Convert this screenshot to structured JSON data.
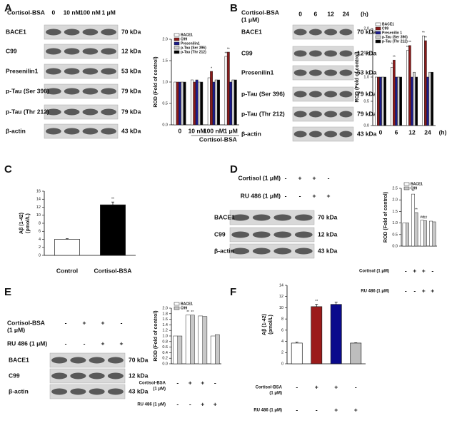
{
  "panel_labels": [
    "A",
    "B",
    "C",
    "D",
    "E",
    "F"
  ],
  "blots": [
    {
      "header": [
        "Cortisol-BSA"
      ],
      "lanes": [
        "0",
        "10 nM",
        "100 nM",
        "1 μM"
      ],
      "rows": [
        {
          "label": "BACE1",
          "kda": "70 kDa"
        },
        {
          "label": "C99",
          "kda": "12 kDa"
        },
        {
          "label": "Presenilin1",
          "kda": "53 kDa"
        },
        {
          "label": "p-Tau (Ser 396)",
          "kda": "79 kDa"
        },
        {
          "label": "p-Tau (Thr 212)",
          "kda": "79 kDa"
        },
        {
          "label": "β-actin",
          "kda": "43 kDa"
        }
      ]
    },
    {
      "header": [
        "Cortisol-BSA",
        "(1 μM)"
      ],
      "lanes": [
        "0",
        "6",
        "12",
        "24"
      ],
      "unit": "(h)",
      "rows": [
        {
          "label": "BACE1",
          "kda": "70 kDa"
        },
        {
          "label": "C99",
          "kda": "12 kDa"
        },
        {
          "label": "Presenilin1",
          "kda": "53 kDa"
        },
        {
          "label": "p-Tau (Ser 396)",
          "kda": "79 kDa"
        },
        {
          "label": "p-Tau (Thr 212)",
          "kda": "79 kDa"
        },
        {
          "label": "β-actin",
          "kda": "43 kDa"
        }
      ]
    },
    {
      "conditions": [
        {
          "name": [
            "Cortisol (1 μM)"
          ],
          "signs": [
            "-",
            "+",
            "+",
            "-"
          ]
        },
        {
          "name": [
            "RU 486 (1 μM)"
          ],
          "signs": [
            "-",
            "-",
            "+",
            "+"
          ]
        }
      ],
      "rows": [
        {
          "label": "BACE1",
          "kda": "70 kDa"
        },
        {
          "label": "C99",
          "kda": "12 kDa"
        },
        {
          "label": "β-actin",
          "kda": "43 kDa"
        }
      ]
    },
    {
      "conditions": [
        {
          "name": [
            "Cortisol-BSA",
            "(1 μM)"
          ],
          "signs": [
            "-",
            "+",
            "+",
            "-"
          ]
        },
        {
          "name": [
            "RU 486 (1 μM)"
          ],
          "signs": [
            "-",
            "-",
            "+",
            "+"
          ]
        }
      ],
      "rows": [
        {
          "label": "BACE1",
          "kda": "70 kDa"
        },
        {
          "label": "C99",
          "kda": "12 kDa"
        },
        {
          "label": "β-actin",
          "kda": "43 kDa"
        }
      ]
    }
  ],
  "chart_data": [
    {
      "type": "bar",
      "ylabel": "ROD (Fold of control)",
      "xlabel": "Cortisol-BSA",
      "categories": [
        "0",
        "10 nM",
        "100 nM",
        "1 μM"
      ],
      "series": [
        {
          "name": "BACE1",
          "color": "#ffffff",
          "values": [
            1.0,
            1.05,
            1.1,
            1.6
          ]
        },
        {
          "name": "C99",
          "color": "#8b1a1a",
          "values": [
            1.0,
            1.0,
            1.25,
            1.7
          ]
        },
        {
          "name": "Presenilin1",
          "color": "#1a1a8c",
          "values": [
            1.0,
            1.05,
            1.0,
            1.0
          ]
        },
        {
          "name": "p-Tau (Ser 396)",
          "color": "#d0d0d0",
          "values": [
            1.0,
            1.0,
            1.05,
            1.05
          ]
        },
        {
          "name": "p-Tau (Thr 212)",
          "color": "#000000",
          "values": [
            1.0,
            1.0,
            1.05,
            1.05
          ]
        }
      ],
      "ylim": [
        0,
        2
      ],
      "yticks": [
        {
          "value": 0,
          "label": "0.0"
        },
        {
          "value": 0.5,
          "label": "0.5"
        },
        {
          "value": 1,
          "label": "1.0"
        },
        {
          "value": 1.5,
          "label": "1.5"
        },
        {
          "value": 2,
          "label": "2.0"
        }
      ],
      "legend": "upper left",
      "markers": [
        {
          "series": 1,
          "category": 2,
          "label": "*"
        },
        {
          "series": 0,
          "category": 3,
          "label": "**"
        },
        {
          "series": 1,
          "category": 3,
          "label": "**"
        }
      ]
    },
    {
      "type": "bar",
      "ylabel": "ROD (Fold of control)",
      "categories": [
        "0",
        "6",
        "12",
        "24"
      ],
      "unit": "(h)",
      "series": [
        {
          "name": "BACE1",
          "color": "#ffffff",
          "values": [
            1.0,
            1.2,
            1.55,
            1.85
          ]
        },
        {
          "name": "C99",
          "color": "#8b1a1a",
          "values": [
            1.0,
            1.35,
            1.65,
            1.75
          ]
        },
        {
          "name": "Presenilin 1",
          "color": "#1a1a8c",
          "values": [
            1.0,
            1.0,
            1.0,
            1.0
          ]
        },
        {
          "name": "p-Tau (Ser 396)",
          "color": "#d0d0d0",
          "values": [
            1.0,
            1.0,
            1.1,
            1.1
          ]
        },
        {
          "name": "p-Tau (Thr 212)",
          "color": "#000000",
          "values": [
            1.0,
            1.0,
            1.0,
            1.1
          ]
        }
      ],
      "ylim": [
        0,
        2
      ],
      "yticks": [
        {
          "value": 0,
          "label": "0.0"
        },
        {
          "value": 0.5,
          "label": "0.5"
        },
        {
          "value": 1,
          "label": "1.0"
        },
        {
          "value": 1.5,
          "label": "1.5"
        },
        {
          "value": 2,
          "label": "2.0"
        }
      ],
      "legend": "upper left",
      "markers": [
        {
          "series": 0,
          "category": 1,
          "label": "*"
        },
        {
          "series": 1,
          "category": 1,
          "label": "**"
        },
        {
          "series": 0,
          "category": 2,
          "label": "**"
        },
        {
          "series": 1,
          "category": 2,
          "label": "**"
        },
        {
          "series": 0,
          "category": 3,
          "label": "**"
        },
        {
          "series": 1,
          "category": 3,
          "label": "**"
        }
      ]
    },
    {
      "type": "bar",
      "ylabel": [
        "Aβ (1-42)",
        "(pmol/L)"
      ],
      "categories": [
        "Control",
        "Cortisol-BSA"
      ],
      "values": [
        4.0,
        12.6
      ],
      "errors": [
        0.15,
        0.7
      ],
      "colors": [
        "#ffffff",
        "#000000"
      ],
      "ylim": [
        0,
        16
      ],
      "yticks": [
        0,
        2,
        4,
        6,
        8,
        10,
        12,
        14,
        16
      ],
      "markers": [
        {
          "category": 1,
          "label": "**"
        }
      ]
    },
    {
      "type": "bar",
      "ylabel": "ROD (Fold of control)",
      "conditions": [
        {
          "name": [
            "Cortisol (1 μM)"
          ],
          "signs": [
            "-",
            "+",
            "+",
            "-"
          ]
        },
        {
          "name": [
            "RU 486 (1 μM)"
          ],
          "signs": [
            "-",
            "-",
            "+",
            "+"
          ]
        }
      ],
      "series": [
        {
          "name": "BACE1",
          "color": "#ffffff",
          "values": [
            1.0,
            2.25,
            1.12,
            1.08
          ]
        },
        {
          "name": "C99",
          "color": "#c8c8c8",
          "values": [
            1.0,
            1.45,
            1.1,
            1.05
          ]
        }
      ],
      "ylim": [
        0,
        2.5
      ],
      "yticks": [
        {
          "value": 0,
          "label": "0.0"
        },
        {
          "value": 0.5,
          "label": "0.5"
        },
        {
          "value": 1,
          "label": "1.0"
        },
        {
          "value": 1.5,
          "label": "1.5"
        },
        {
          "value": 2,
          "label": "2.0"
        },
        {
          "value": 2.5,
          "label": "2.5"
        }
      ],
      "legend": "upper left",
      "markers": [
        {
          "series": 0,
          "category": 1,
          "label": "**"
        },
        {
          "series": 1,
          "category": 1,
          "label": "**"
        },
        {
          "series": 0,
          "category": 2,
          "label": "##"
        },
        {
          "series": 1,
          "category": 2,
          "label": "##"
        }
      ]
    },
    {
      "type": "bar",
      "ylabel": "ROD (Fold of control)",
      "conditions": [
        {
          "name": [
            "Cortisol-BSA",
            "(1 μM)"
          ],
          "signs": [
            "-",
            "+",
            "+",
            "-"
          ]
        },
        {
          "name": [
            "RU 486 (1 μM)"
          ],
          "signs": [
            "-",
            "-",
            "+",
            "+"
          ]
        }
      ],
      "series": [
        {
          "name": "BACE1",
          "color": "#ffffff",
          "values": [
            1.0,
            1.75,
            1.72,
            1.0
          ]
        },
        {
          "name": "C99",
          "color": "#c8c8c8",
          "values": [
            1.0,
            1.75,
            1.7,
            1.05
          ]
        }
      ],
      "ylim": [
        0,
        2
      ],
      "yticks": [
        {
          "value": 0,
          "label": "0.0"
        },
        {
          "value": 0.2,
          "label": "0.2"
        },
        {
          "value": 0.4,
          "label": "0.4"
        },
        {
          "value": 0.6,
          "label": "0.6"
        },
        {
          "value": 0.8,
          "label": "0.8"
        },
        {
          "value": 1,
          "label": "1.0"
        },
        {
          "value": 1.2,
          "label": "1.2"
        },
        {
          "value": 1.4,
          "label": "1.4"
        },
        {
          "value": 1.6,
          "label": "1.6"
        },
        {
          "value": 1.8,
          "label": "1.8"
        },
        {
          "value": 2,
          "label": "2.0"
        }
      ],
      "legend": "upper left",
      "markers": [
        {
          "series": 0,
          "category": 1,
          "label": "**"
        },
        {
          "series": 1,
          "category": 1,
          "label": "**"
        }
      ]
    },
    {
      "type": "bar",
      "ylabel": [
        "Aβ (1-42)",
        "(pmol/L)"
      ],
      "conditions": [
        {
          "name": [
            "Cortisol-BSA",
            "(1 μM)"
          ],
          "signs": [
            "-",
            "+",
            "+",
            "-"
          ]
        },
        {
          "name": [
            "RU 486 (1 μM)"
          ],
          "signs": [
            "-",
            "-",
            "+",
            "+"
          ]
        }
      ],
      "values": [
        3.7,
        10.2,
        10.6,
        3.7
      ],
      "errors": [
        0.15,
        0.4,
        0.4,
        0.05
      ],
      "colors": [
        "#ffffff",
        "#9b1b1b",
        "#0a0a8c",
        "#bdbdbd"
      ],
      "ylim": [
        0,
        14
      ],
      "yticks": [
        0,
        2,
        4,
        6,
        8,
        10,
        12,
        14
      ],
      "markers": [
        {
          "category": 1,
          "label": "**"
        }
      ]
    }
  ]
}
